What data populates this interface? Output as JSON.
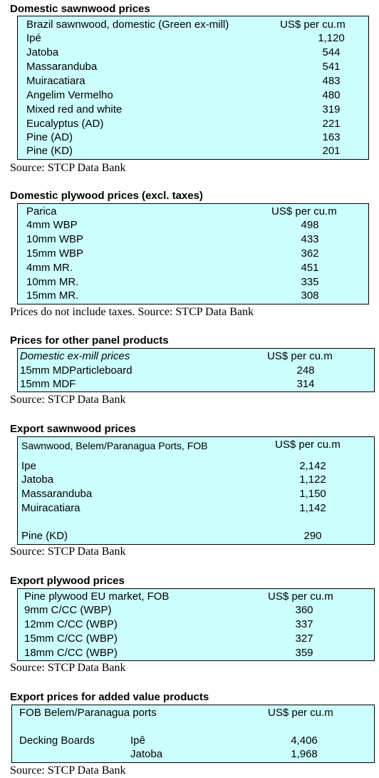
{
  "sections": [
    {
      "heading": "Domestic sawnwood prices",
      "col_label": "Brazil sawnwood, domestic (Green ex-mill)",
      "col_value": "US$ per cu.m",
      "rows": [
        {
          "label": "Ipé",
          "value": "1,120"
        },
        {
          "label": "Jatoba",
          "value": "544"
        },
        {
          "label": "Massaranduba",
          "value": "541"
        },
        {
          "label": "Muiracatiara",
          "value": "483"
        },
        {
          "label": "Angelim Vermelho",
          "value": "480"
        },
        {
          "label": "Mixed red and white",
          "value": "319"
        },
        {
          "label": "Eucalyptus (AD)",
          "value": "221"
        },
        {
          "label": "Pine (AD)",
          "value": "163"
        },
        {
          "label": "Pine (KD)",
          "value": "201"
        }
      ],
      "source": "Source: STCP Data Bank"
    },
    {
      "heading": "Domestic plywood prices (excl. taxes)",
      "col_label": "Parica",
      "col_value": "US$ per cu.m",
      "rows": [
        {
          "label": "4mm WBP",
          "value": "498"
        },
        {
          "label": "10mm WBP",
          "value": "433"
        },
        {
          "label": "15mm WBP",
          "value": "362"
        },
        {
          "label": "4mm MR.",
          "value": "451"
        },
        {
          "label": "10mm MR.",
          "value": "335"
        },
        {
          "label": "15mm MR.",
          "value": "308"
        }
      ],
      "source": "Prices do not include taxes. Source: STCP Data Bank"
    },
    {
      "heading": "Prices for other panel products",
      "col_label": "Domestic ex-mill prices",
      "col_value": "US$ per cu.m",
      "rows": [
        {
          "label": "15mm MDParticleboard",
          "value": "248"
        },
        {
          "label": "15mm MDF",
          "value": "314"
        }
      ],
      "source": "Source: STCP Data Bank"
    },
    {
      "heading": "Export sawnwood prices",
      "col_label": "Sawnwood, Belem/Paranagua Ports, FOB",
      "col_value": "US$ per cu.m",
      "rows": [
        {
          "label": "Ipe",
          "value": "2,142"
        },
        {
          "label": "Jatoba",
          "value": "1,122"
        },
        {
          "label": "Massaranduba",
          "value": "1,150"
        },
        {
          "label": "Muiracatiara",
          "value": "1,142"
        },
        {
          "label": "Pine (KD)",
          "value": "290"
        }
      ],
      "source": "Source: STCP Data Bank"
    },
    {
      "heading": "Export plywood prices",
      "col_label": "Pine plywood EU market, FOB",
      "col_value": "US$ per cu.m",
      "rows": [
        {
          "label": "9mm C/CC (WBP)",
          "value": "360"
        },
        {
          "label": "12mm C/CC (WBP)",
          "value": "337"
        },
        {
          "label": "15mm C/CC (WBP)",
          "value": "327"
        },
        {
          "label": "18mm C/CC (WBP)",
          "value": "359"
        }
      ],
      "source": "Source: STCP Data Bank"
    },
    {
      "heading": "Export prices for added value products",
      "col_label": "FOB Belem/Paranagua ports",
      "col_value": "US$ per cu.m",
      "group": "Decking Boards",
      "rows": [
        {
          "label": "Ipê",
          "value": "4,406"
        },
        {
          "label": "Jatoba",
          "value": "1,968"
        }
      ],
      "source": "Source: STCP Data Bank"
    }
  ]
}
